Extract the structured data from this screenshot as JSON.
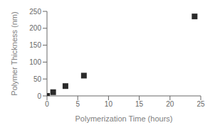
{
  "chart_data": {
    "type": "scatter",
    "x": [
      0,
      1,
      3,
      6,
      24
    ],
    "values": [
      0,
      11,
      29,
      60,
      235
    ],
    "xlabel": "Polymerization Time (hours)",
    "ylabel": "Polymer Thickness (nm)",
    "xlim": [
      0,
      25
    ],
    "ylim": [
      0,
      250
    ],
    "xticks": [
      0,
      5,
      10,
      15,
      20,
      25
    ],
    "yticks": [
      0,
      50,
      100,
      150,
      200,
      250
    ],
    "color": "#2a2a2a",
    "marker": "square",
    "grid": false
  }
}
